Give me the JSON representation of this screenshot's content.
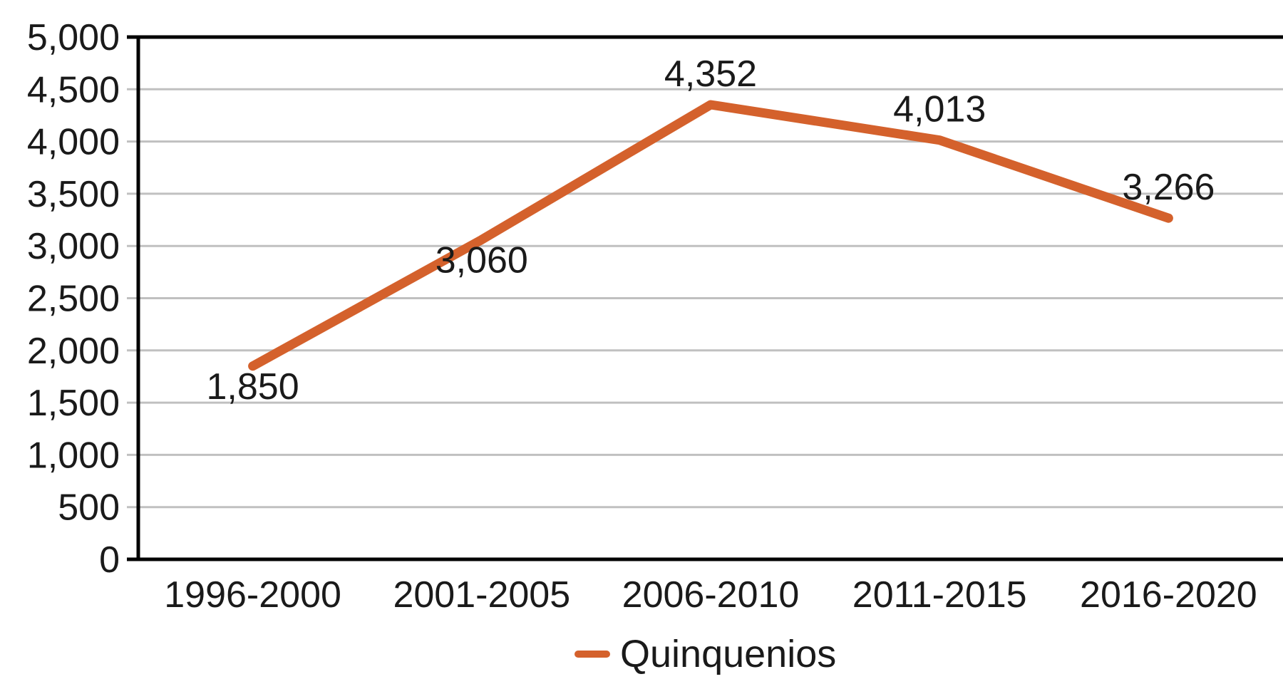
{
  "chart_data": {
    "type": "line",
    "title": "",
    "xlabel": "",
    "ylabel": "",
    "categories": [
      "1996-2000",
      "2001-2005",
      "2006-2010",
      "2011-2015",
      "2016-2020"
    ],
    "series": [
      {
        "name": "Quinquenios",
        "values": [
          1850,
          3060,
          4352,
          4013,
          3266
        ]
      }
    ],
    "data_labels": [
      "1,850",
      "3,060",
      "4,352",
      "4,013",
      "3,266"
    ],
    "label_positions": [
      "below",
      "below",
      "above",
      "above",
      "above"
    ],
    "ylim": [
      0,
      5000
    ],
    "ytick_step": 500,
    "ytick_labels": [
      "0",
      "500",
      "1,000",
      "1,500",
      "2,000",
      "2,500",
      "3,000",
      "3,500",
      "4,000",
      "4,500",
      "5,000"
    ],
    "grid": true,
    "legend_position": "bottom",
    "colors": {
      "line": "#d4612c",
      "gridline": "#c0c0c0",
      "axis": "#000000",
      "text": "#1a1a1a",
      "background": "#ffffff"
    }
  }
}
